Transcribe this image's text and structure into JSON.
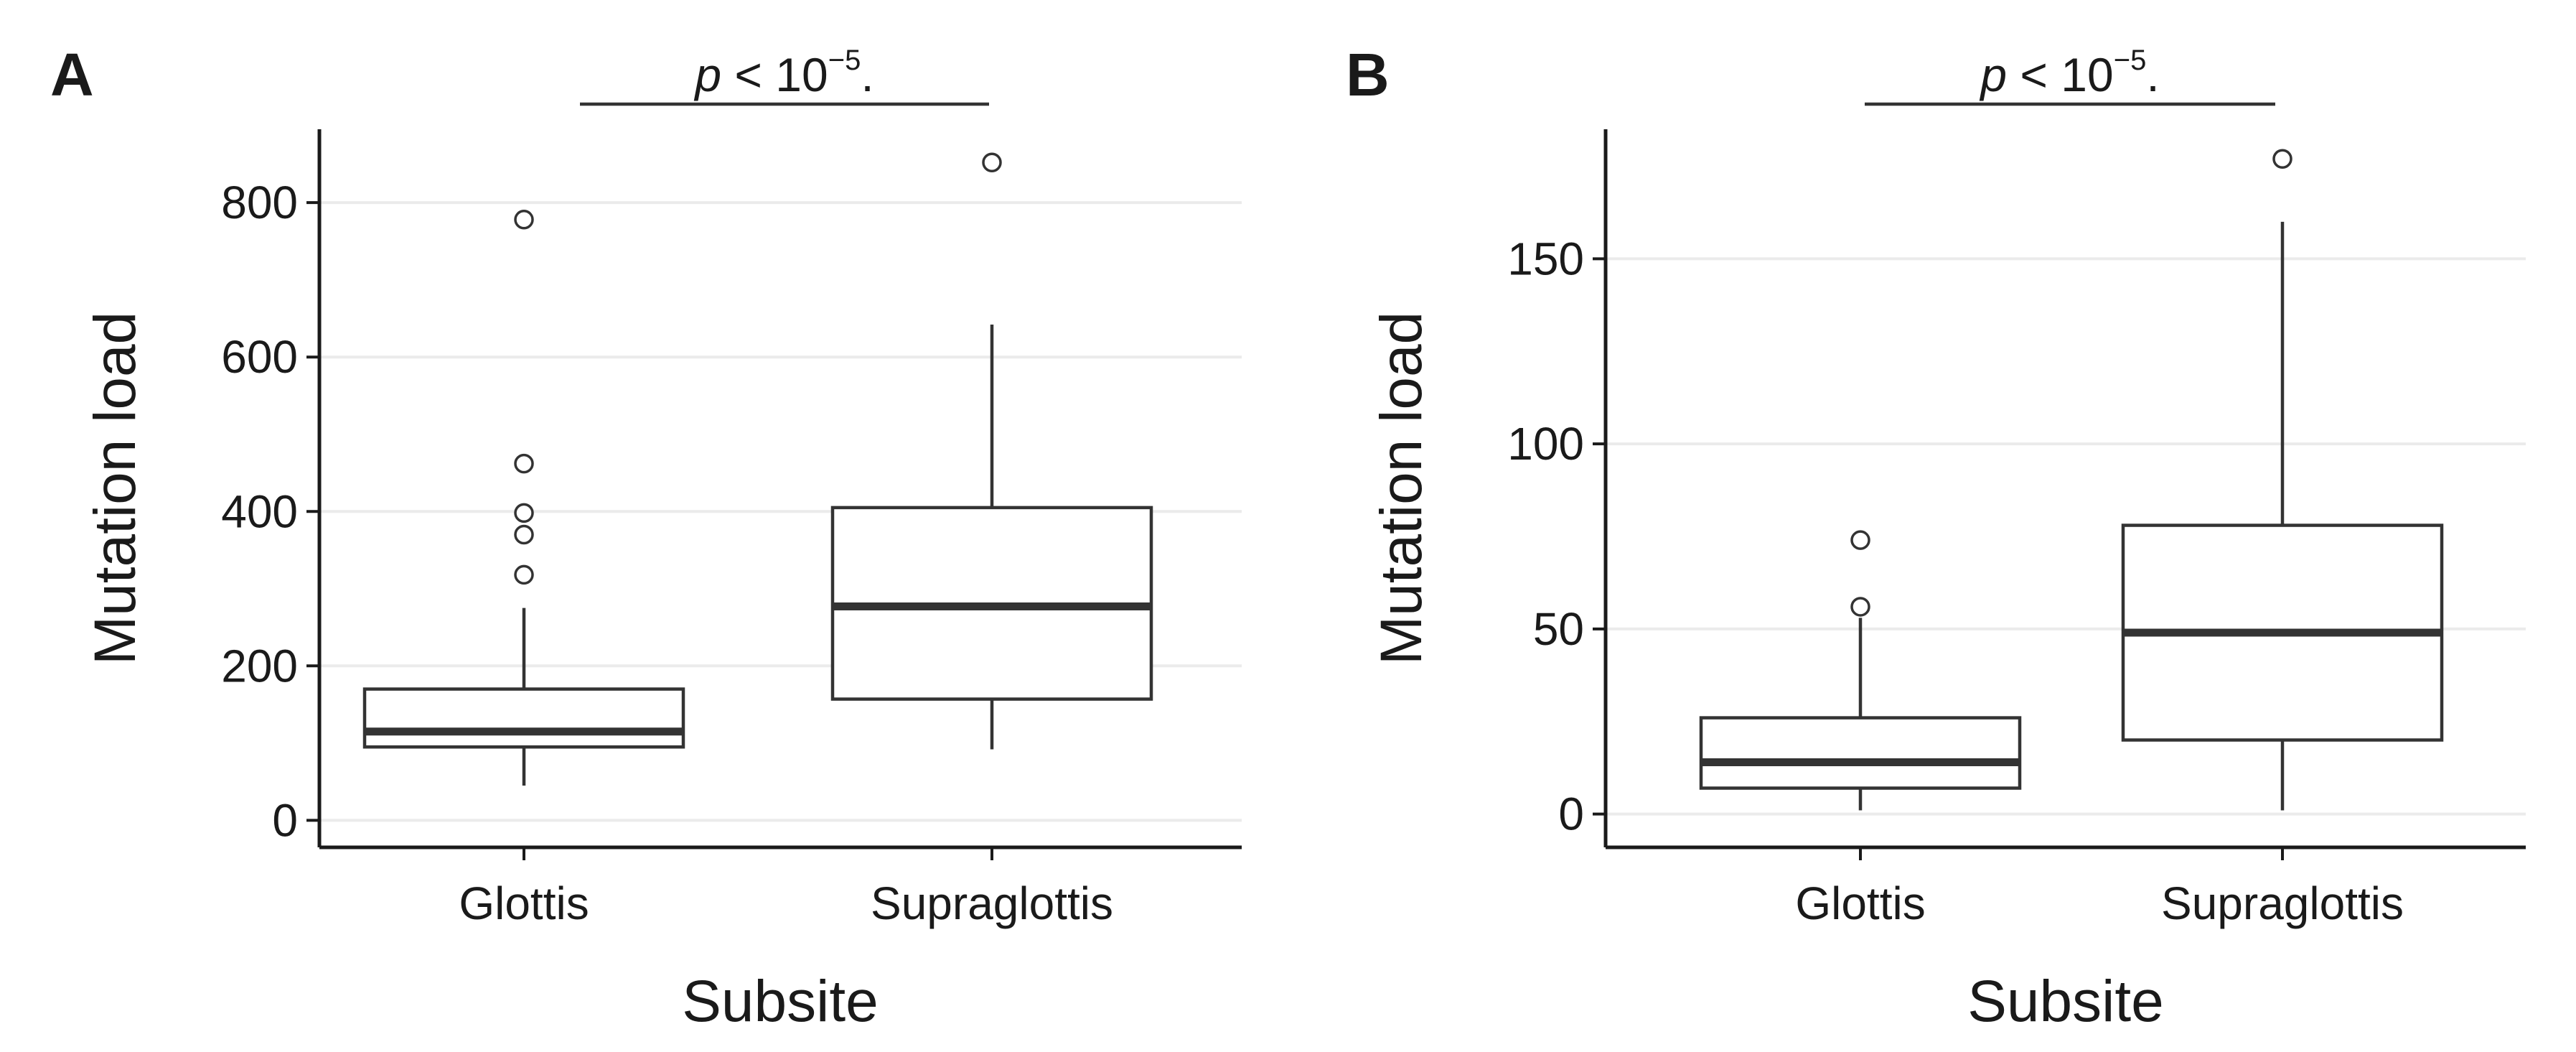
{
  "chart_data": [
    {
      "type": "box",
      "panel_label": "A",
      "xlabel": "Subsite",
      "ylabel": "Mutation load",
      "categories": [
        "Glottis",
        "Supraglottis"
      ],
      "yticks": [
        0,
        200,
        400,
        600,
        800
      ],
      "ylim": [
        -35,
        895
      ],
      "grid": true,
      "boxes": [
        {
          "category": "Glottis",
          "whisker_low": 45,
          "q1": 95,
          "median": 115,
          "q3": 170,
          "whisker_high": 275,
          "outliers": [
            318,
            370,
            398,
            462,
            778
          ]
        },
        {
          "category": "Supraglottis",
          "whisker_low": 92,
          "q1": 157,
          "median": 277,
          "q3": 405,
          "whisker_high": 642,
          "outliers": [
            852
          ]
        }
      ],
      "significance": {
        "p_symbol": "p",
        "relation": " < 10",
        "exponent": "−5",
        "suffix": "."
      }
    },
    {
      "type": "box",
      "panel_label": "B",
      "xlabel": "Subsite",
      "ylabel": "Mutation load",
      "categories": [
        "Glottis",
        "Supraglottis"
      ],
      "yticks": [
        0,
        50,
        100,
        150
      ],
      "ylim": [
        -9,
        185
      ],
      "grid": true,
      "boxes": [
        {
          "category": "Glottis",
          "whisker_low": 1,
          "q1": 7,
          "median": 14,
          "q3": 26,
          "whisker_high": 53,
          "outliers": [
            56,
            74
          ]
        },
        {
          "category": "Supraglottis",
          "whisker_low": 1,
          "q1": 20,
          "median": 49,
          "q3": 78,
          "whisker_high": 160,
          "outliers": [
            177
          ]
        }
      ],
      "significance": {
        "p_symbol": "p",
        "relation": " < 10",
        "exponent": "−5",
        "suffix": "."
      }
    }
  ]
}
